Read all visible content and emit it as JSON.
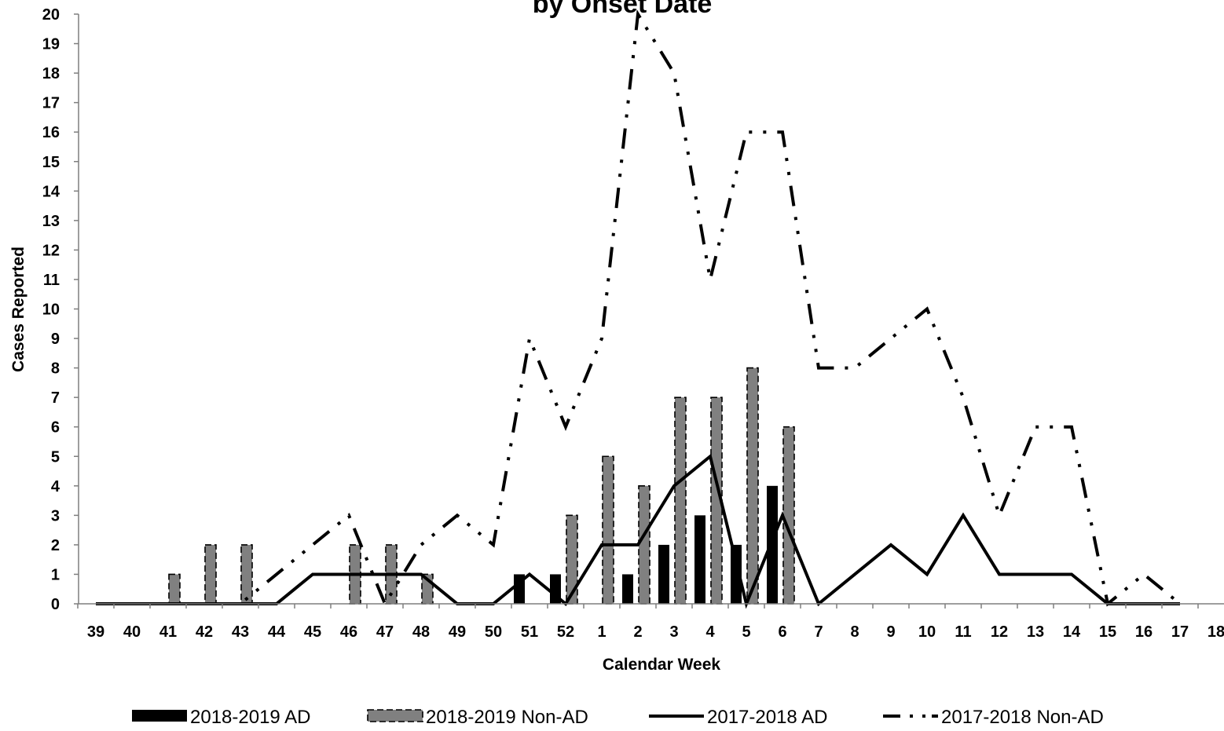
{
  "chart_data": {
    "type": "bar",
    "title": "by Onset Date",
    "xlabel": "Calendar Week",
    "ylabel": "Cases Reported",
    "ylim": [
      0,
      20
    ],
    "yticks": [
      0,
      1,
      2,
      3,
      4,
      5,
      6,
      7,
      8,
      9,
      10,
      11,
      12,
      13,
      14,
      15,
      16,
      17,
      18,
      19,
      20
    ],
    "categories": [
      "39",
      "40",
      "41",
      "42",
      "43",
      "44",
      "45",
      "46",
      "47",
      "48",
      "49",
      "50",
      "51",
      "52",
      "1",
      "2",
      "3",
      "4",
      "5",
      "6",
      "7",
      "8",
      "9",
      "10",
      "11",
      "12",
      "13",
      "14",
      "15",
      "16",
      "17",
      "18"
    ],
    "grid": false,
    "legend_position": "bottom",
    "series": [
      {
        "name": "2018-2019 AD",
        "kind": "bar",
        "color": "#000000",
        "values": [
          0,
          0,
          0,
          0,
          0,
          0,
          0,
          0,
          0,
          0,
          0,
          0,
          1,
          1,
          0,
          1,
          2,
          3,
          2,
          4,
          null,
          null,
          null,
          null,
          null,
          null,
          null,
          null,
          null,
          null,
          null,
          null
        ]
      },
      {
        "name": "2018-2019 Non-AD",
        "kind": "bar",
        "color": "#808080",
        "values": [
          0,
          0,
          1,
          2,
          2,
          0,
          0,
          2,
          2,
          1,
          0,
          0,
          0,
          3,
          5,
          4,
          7,
          7,
          8,
          6,
          null,
          null,
          null,
          null,
          null,
          null,
          null,
          null,
          null,
          null,
          null,
          null
        ]
      },
      {
        "name": "2017-2018 AD",
        "kind": "line",
        "style": "solid",
        "color": "#000000",
        "values": [
          0,
          0,
          0,
          0,
          0,
          0,
          1,
          1,
          1,
          1,
          0,
          0,
          1,
          0,
          2,
          2,
          4,
          5,
          0,
          3,
          0,
          1,
          2,
          1,
          3,
          1,
          1,
          1,
          0,
          0,
          0,
          null
        ]
      },
      {
        "name": "2017-2018 Non-AD",
        "kind": "line",
        "style": "dash-dot-dot",
        "color": "#000000",
        "values": [
          0,
          0,
          0,
          0,
          0,
          1,
          2,
          3,
          0,
          2,
          3,
          2,
          9,
          6,
          9,
          20,
          18,
          11,
          16,
          16,
          8,
          8,
          9,
          10,
          7,
          3,
          6,
          6,
          0,
          1,
          0,
          null
        ]
      }
    ]
  }
}
